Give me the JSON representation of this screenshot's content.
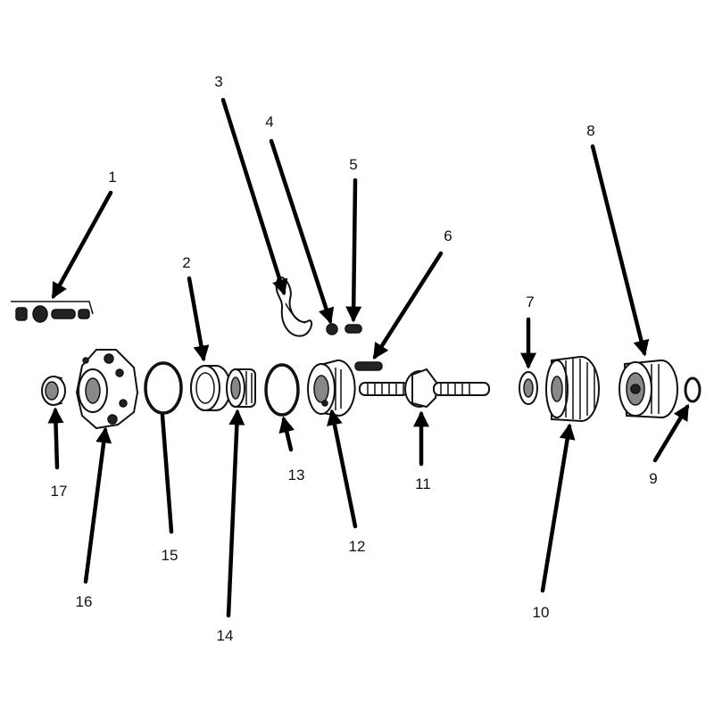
{
  "callouts": [
    {
      "id": "1",
      "label": "1"
    },
    {
      "id": "2",
      "label": "2"
    },
    {
      "id": "3",
      "label": "3"
    },
    {
      "id": "4",
      "label": "4"
    },
    {
      "id": "5",
      "label": "5"
    },
    {
      "id": "6",
      "label": "6"
    },
    {
      "id": "7",
      "label": "7"
    },
    {
      "id": "8",
      "label": "8"
    },
    {
      "id": "9",
      "label": "9"
    },
    {
      "id": "10",
      "label": "10"
    },
    {
      "id": "11",
      "label": "11"
    },
    {
      "id": "12",
      "label": "12"
    },
    {
      "id": "13",
      "label": "13"
    },
    {
      "id": "14",
      "label": "14"
    },
    {
      "id": "15",
      "label": "15"
    },
    {
      "id": "16",
      "label": "16"
    },
    {
      "id": "17",
      "label": "17"
    }
  ]
}
